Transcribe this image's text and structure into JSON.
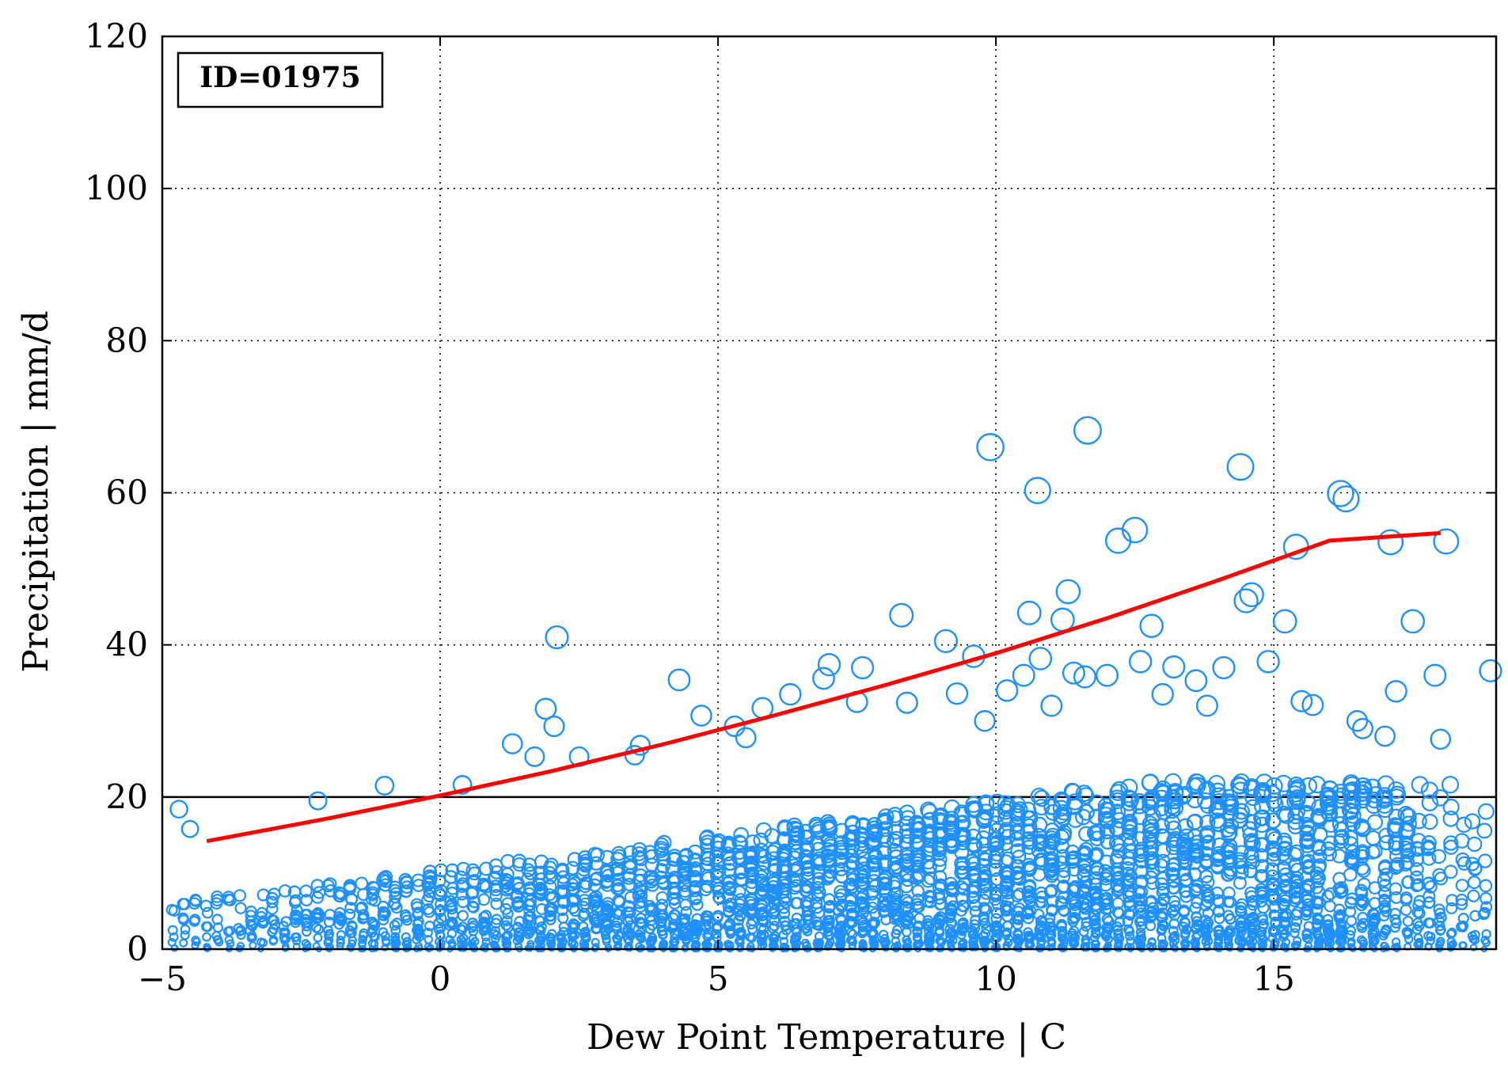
{
  "chart_data": {
    "type": "scatter",
    "id_label": "ID=01975",
    "xlabel": "Dew Point Temperature | C",
    "ylabel": "Precipitation | mm/d",
    "xlim": [
      -5,
      19
    ],
    "ylim": [
      0,
      120
    ],
    "xticks": [
      -5,
      0,
      5,
      10,
      15
    ],
    "xtick_labels": [
      "−5",
      "0",
      "5",
      "10",
      "15"
    ],
    "yticks": [
      0,
      20,
      40,
      60,
      80,
      100,
      120
    ],
    "ytick_labels": [
      "0",
      "20",
      "40",
      "60",
      "80",
      "100",
      "120"
    ],
    "grid": true,
    "threshold_line": 20,
    "colors": {
      "points": "#1e90ff",
      "fit": "#ff0000",
      "axes": "#000000"
    },
    "fit_line": {
      "x": [
        -4.2,
        -2,
        0,
        2,
        4,
        6,
        8,
        10,
        12,
        14,
        16,
        18
      ],
      "y": [
        14.2,
        17.2,
        20.2,
        23.4,
        26.9,
        30.7,
        34.7,
        38.9,
        43.5,
        48.5,
        53.7,
        54.7
      ]
    },
    "scatter_points": {
      "x": [
        -4.7,
        -4.5,
        -2.2,
        -1.0,
        0.4,
        1.3,
        1.7,
        1.9,
        2.05,
        2.1,
        2.5,
        3.5,
        3.6,
        4.3,
        4.7,
        5.3,
        5.5,
        5.8,
        6.3,
        6.9,
        7.0,
        7.5,
        7.6,
        8.3,
        8.4,
        9.1,
        9.3,
        9.6,
        9.8,
        9.9,
        10.2,
        10.5,
        10.6,
        10.75,
        10.8,
        11.0,
        11.2,
        11.3,
        11.4,
        11.6,
        11.65,
        12.0,
        12.2,
        12.5,
        12.6,
        12.8,
        13.0,
        13.2,
        13.6,
        13.8,
        14.1,
        14.4,
        14.5,
        14.6,
        14.9,
        15.2,
        15.4,
        15.5,
        15.7,
        16.2,
        16.3,
        16.5,
        16.6,
        17.0,
        17.1,
        17.2,
        17.5,
        17.9,
        18.0,
        18.1,
        18.9
      ],
      "y": [
        18.4,
        15.8,
        19.5,
        21.5,
        21.6,
        27.0,
        25.3,
        31.6,
        29.3,
        41.0,
        25.3,
        25.5,
        26.8,
        35.4,
        30.7,
        29.3,
        27.8,
        31.7,
        33.5,
        35.6,
        37.4,
        32.5,
        37.0,
        43.9,
        32.4,
        40.5,
        33.6,
        38.5,
        30.0,
        66.0,
        34.0,
        36.0,
        44.2,
        60.3,
        38.2,
        32.0,
        43.3,
        47.0,
        36.3,
        35.8,
        68.2,
        36.0,
        53.7,
        55.1,
        37.8,
        42.5,
        33.5,
        37.1,
        35.3,
        32.0,
        37.0,
        63.4,
        45.8,
        46.6,
        37.8,
        43.1,
        52.9,
        32.6,
        32.1,
        59.9,
        59.2,
        30.0,
        29.0,
        28.0,
        53.5,
        33.9,
        43.1,
        36.0,
        27.6,
        53.6,
        36.6
      ]
    }
  }
}
